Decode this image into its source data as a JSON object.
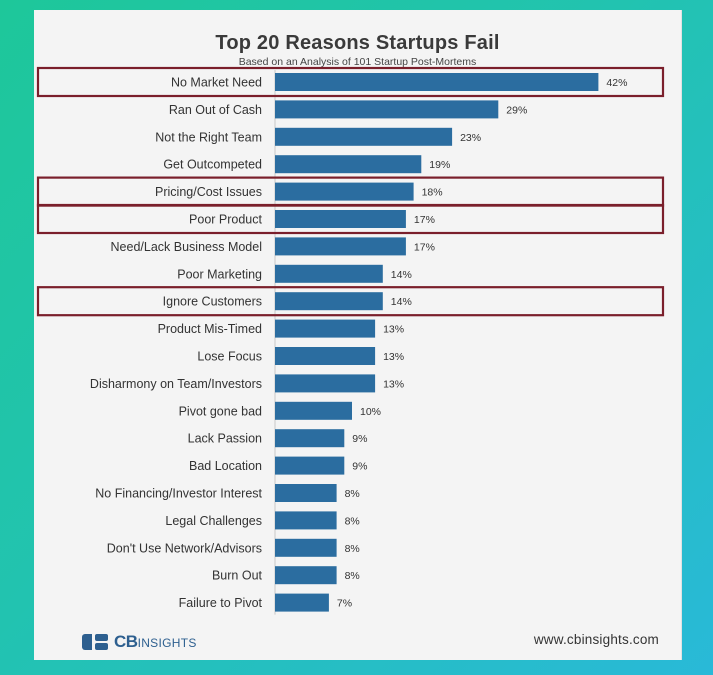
{
  "chart_data": {
    "type": "bar",
    "orientation": "horizontal",
    "title": "Top 20 Reasons Startups Fail",
    "subtitle": "Based on an Analysis of 101 Startup Post-Mortems",
    "categories": [
      "No Market Need",
      "Ran Out of Cash",
      "Not the Right Team",
      "Get Outcompeted",
      "Pricing/Cost Issues",
      "Poor Product",
      "Need/Lack Business Model",
      "Poor Marketing",
      "Ignore Customers",
      "Product Mis-Timed",
      "Lose Focus",
      "Disharmony on Team/Investors",
      "Pivot gone bad",
      "Lack Passion",
      "Bad Location",
      "No Financing/Investor Interest",
      "Legal Challenges",
      "Don't Use Network/Advisors",
      "Burn Out",
      "Failure to Pivot"
    ],
    "values": [
      42,
      29,
      23,
      19,
      18,
      17,
      17,
      14,
      14,
      13,
      13,
      13,
      10,
      9,
      9,
      8,
      8,
      8,
      8,
      7
    ],
    "value_labels": [
      "42%",
      "29%",
      "23%",
      "19%",
      "18%",
      "17%",
      "17%",
      "14%",
      "14%",
      "13%",
      "13%",
      "13%",
      "10%",
      "9%",
      "9%",
      "8%",
      "8%",
      "8%",
      "8%",
      "7%"
    ],
    "unit": "%",
    "xlim": [
      0,
      45
    ],
    "highlighted": [
      "No Market Need",
      "Pricing/Cost Issues",
      "Poor Product",
      "Ignore Customers"
    ],
    "bar_color": "#2b6da0",
    "highlight_color": "#7a1f2b",
    "xlabel": "",
    "ylabel": "",
    "grid": false
  },
  "branding": {
    "logo_text_main": "CB",
    "logo_text_sub": "INSIGHTS",
    "website": "www.cbinsights.com"
  }
}
